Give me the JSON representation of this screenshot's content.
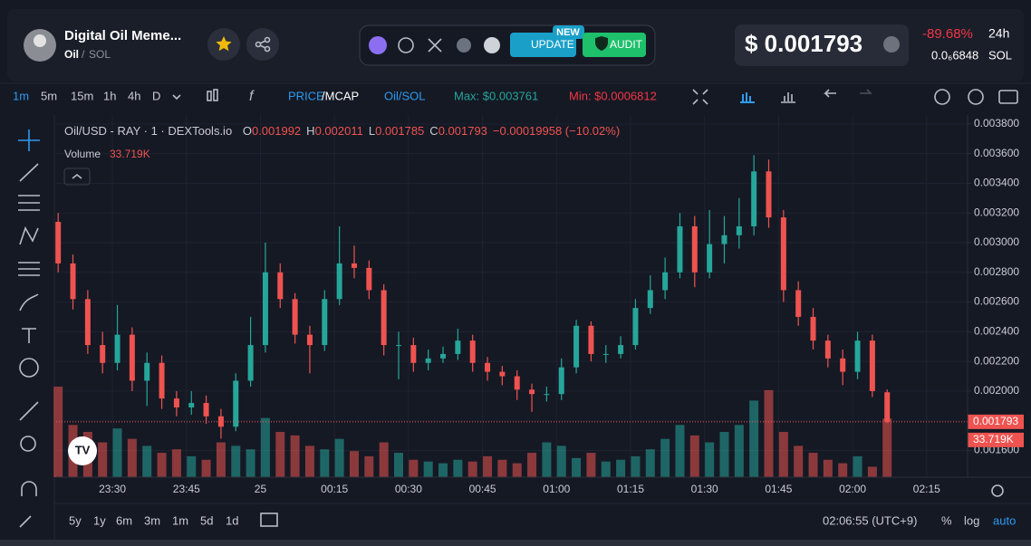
{
  "header": {
    "token_name": "Digital Oil Meme...",
    "symbol": "Oil",
    "pair": "SOL",
    "new_badge": "NEW",
    "update": "UPDATE",
    "audit": "AUDIT",
    "price": "$ 0.001793",
    "change": "-89.68%",
    "period": "24h",
    "price_native": "0.0₆6848",
    "native_symbol": "SOL"
  },
  "toolbar": {
    "intervals": [
      "1m",
      "5m",
      "15m",
      "1h",
      "4h",
      "D"
    ],
    "price": "PRICE",
    "mcap": "/MCAP",
    "pair_toggle": "Oil/SOL",
    "max": "Max: $0.003761",
    "min": "Min: $0.0006812"
  },
  "chart_data": {
    "type": "candlestick",
    "title": "Oil/USD - RAY · 1 · DEXTools.io",
    "legend_ohlc": [
      {
        "key": "O",
        "value": "0.001992"
      },
      {
        "key": "H",
        "value": "0.002011"
      },
      {
        "key": "L",
        "value": "0.001785"
      },
      {
        "key": "C",
        "value": "0.001793"
      }
    ],
    "legend_change": "−0.00019958 (−10.02%)",
    "volume_title": "Volume",
    "volume_value_label": "33.719K",
    "up_color": "#26a69a",
    "down_color": "#ef5350",
    "x": [
      -11,
      -8,
      -5,
      -2,
      1,
      4,
      7,
      10,
      13,
      16,
      19,
      22,
      25,
      28,
      31,
      34,
      37,
      40,
      43,
      46,
      49,
      52,
      55,
      58,
      61,
      64,
      67,
      70,
      73,
      76,
      79,
      82,
      85,
      88,
      91,
      94,
      97,
      100,
      103,
      106,
      109,
      112,
      115,
      118,
      121,
      124,
      127,
      130,
      133,
      136,
      139,
      142,
      145,
      148,
      151,
      154,
      157
    ],
    "open": [
      0.00314,
      0.00286,
      0.00262,
      0.00231,
      0.00219,
      0.00238,
      0.00207,
      0.00219,
      0.00195,
      0.00189,
      0.00192,
      0.00183,
      0.00176,
      0.00207,
      0.00231,
      0.0028,
      0.00262,
      0.00238,
      0.00231,
      0.00262,
      0.00286,
      0.00283,
      0.00268,
      0.00231,
      0.00231,
      0.00219,
      0.00222,
      0.00225,
      0.00234,
      0.00219,
      0.00213,
      0.0021,
      0.00201,
      0.00198,
      0.00198,
      0.00216,
      0.00244,
      0.00225,
      0.00225,
      0.00231,
      0.00256,
      0.00268,
      0.0028,
      0.00311,
      0.0028,
      0.00299,
      0.00305,
      0.00311,
      0.00348,
      0.00317,
      0.00268,
      0.0025,
      0.00234,
      0.00222,
      0.00213,
      0.00234,
      0.001992
    ],
    "high": [
      0.0032,
      0.00292,
      0.00268,
      0.0024,
      0.00258,
      0.00243,
      0.00226,
      0.00224,
      0.002,
      0.002,
      0.00197,
      0.00188,
      0.00212,
      0.0025,
      0.003,
      0.00286,
      0.00266,
      0.00244,
      0.00268,
      0.00311,
      0.00298,
      0.00288,
      0.00272,
      0.0024,
      0.00236,
      0.00228,
      0.0023,
      0.00242,
      0.00238,
      0.00223,
      0.00217,
      0.00214,
      0.00205,
      0.00203,
      0.00222,
      0.00248,
      0.00247,
      0.00231,
      0.00237,
      0.00262,
      0.00278,
      0.0029,
      0.0032,
      0.00318,
      0.00322,
      0.00318,
      0.0033,
      0.00359,
      0.00356,
      0.00322,
      0.00274,
      0.00256,
      0.00238,
      0.00228,
      0.0024,
      0.00238,
      0.002011
    ],
    "low": [
      0.0028,
      0.00255,
      0.00225,
      0.00212,
      0.00214,
      0.002,
      0.0019,
      0.00188,
      0.00183,
      0.00184,
      0.00178,
      0.00168,
      0.00173,
      0.00203,
      0.00226,
      0.00256,
      0.00232,
      0.00212,
      0.00227,
      0.00258,
      0.00276,
      0.00262,
      0.00224,
      0.00208,
      0.00213,
      0.00214,
      0.00219,
      0.00221,
      0.00213,
      0.00207,
      0.00204,
      0.00194,
      0.00186,
      0.00193,
      0.00194,
      0.00212,
      0.0022,
      0.00219,
      0.00222,
      0.00228,
      0.00252,
      0.00262,
      0.00276,
      0.0027,
      0.00276,
      0.00286,
      0.00296,
      0.00305,
      0.0031,
      0.0026,
      0.00244,
      0.00228,
      0.00216,
      0.00204,
      0.00208,
      0.00196,
      0.001785
    ],
    "close": [
      0.00286,
      0.00262,
      0.00231,
      0.00219,
      0.00238,
      0.00207,
      0.00219,
      0.00195,
      0.00189,
      0.00192,
      0.00183,
      0.00176,
      0.00207,
      0.00231,
      0.0028,
      0.00262,
      0.00238,
      0.00231,
      0.00262,
      0.00286,
      0.00283,
      0.00268,
      0.00231,
      0.00231,
      0.00219,
      0.00222,
      0.00225,
      0.00234,
      0.00219,
      0.00213,
      0.0021,
      0.00201,
      0.00198,
      0.00198,
      0.00216,
      0.00244,
      0.00225,
      0.00225,
      0.00231,
      0.00256,
      0.00268,
      0.0028,
      0.00311,
      0.0028,
      0.00299,
      0.00305,
      0.00311,
      0.00348,
      0.00317,
      0.00268,
      0.0025,
      0.00234,
      0.00222,
      0.00213,
      0.00234,
      0.002,
      0.001793
    ],
    "volume": [
      52000,
      30000,
      26000,
      20000,
      28000,
      22000,
      18000,
      14000,
      16000,
      12000,
      10000,
      20000,
      18000,
      16000,
      34000,
      26000,
      24000,
      18000,
      16000,
      22000,
      15000,
      12000,
      20000,
      14000,
      10000,
      9000,
      8000,
      10000,
      9000,
      12000,
      10000,
      8000,
      14000,
      20000,
      18000,
      11000,
      14000,
      9000,
      10000,
      12000,
      16000,
      22000,
      30000,
      24000,
      20000,
      26000,
      30000,
      44000,
      50000,
      26000,
      18000,
      14000,
      10000,
      8000,
      12000,
      6000,
      33719
    ],
    "xlim": [
      -11.4,
      173.3
    ],
    "xticks": [
      {
        "value": 0,
        "label": "23:30"
      },
      {
        "value": 15,
        "label": "23:45"
      },
      {
        "value": 30,
        "label": "25"
      },
      {
        "value": 45,
        "label": "00:15"
      },
      {
        "value": 60,
        "label": "00:30"
      },
      {
        "value": 75,
        "label": "00:45"
      },
      {
        "value": 90,
        "label": "01:00"
      },
      {
        "value": 105,
        "label": "01:15"
      },
      {
        "value": 120,
        "label": "01:30"
      },
      {
        "value": 135,
        "label": "01:45"
      },
      {
        "value": 150,
        "label": "02:00"
      },
      {
        "value": 165,
        "label": "02:15"
      }
    ],
    "ylim": [
      0.00142,
      0.00386
    ],
    "yticks": [
      {
        "value": 0.0016,
        "label": "0.001600"
      },
      {
        "value": 0.0018,
        "label": "0.001800"
      },
      {
        "value": 0.002,
        "label": "0.002000"
      },
      {
        "value": 0.0022,
        "label": "0.002200"
      },
      {
        "value": 0.0024,
        "label": "0.002400"
      },
      {
        "value": 0.0026,
        "label": "0.002600"
      },
      {
        "value": 0.0028,
        "label": "0.002800"
      },
      {
        "value": 0.003,
        "label": "0.003000"
      },
      {
        "value": 0.0032,
        "label": "0.003200"
      },
      {
        "value": 0.0034,
        "label": "0.003400"
      },
      {
        "value": 0.0036,
        "label": "0.003600"
      },
      {
        "value": 0.0038,
        "label": "0.003800"
      }
    ],
    "grid": true
  },
  "footer": {
    "ranges": [
      "5y",
      "1y",
      "6m",
      "3m",
      "1m",
      "5d",
      "1d"
    ],
    "clock": "02:06:55 (UTC+9)",
    "percent": "%",
    "log": "log",
    "auto": "auto"
  }
}
